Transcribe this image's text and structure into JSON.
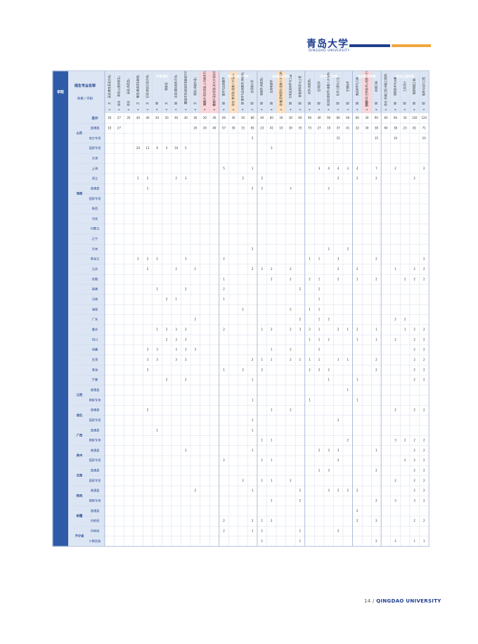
{
  "logo": {
    "cn": "青岛大学",
    "en": "QINGDAO UNIVERSITY"
  },
  "footer": {
    "page": "14 /",
    "university": "QINGDAO UNIVERSITY"
  },
  "colors": {
    "header_blue": "#2f5aa8",
    "light_blue": "#dbe5f3",
    "pink": "#f9d6dc",
    "peach": "#fbe1c4",
    "grid": "#c9d3e6"
  },
  "header": {
    "college": "学院",
    "major": "招生专业名称",
    "category": "科类",
    "years": "学制",
    "total": "总计",
    "regions": [
      {
        "name": "山东",
        "cols": [
          "普通类",
          "地方专项",
          "国家专项"
        ]
      },
      {
        "name": "",
        "cols": [
          "天津"
        ]
      },
      {
        "name": "",
        "cols": [
          "上海"
        ]
      },
      {
        "name": "",
        "cols": [
          "浙江"
        ]
      },
      {
        "name": "海南",
        "cols": [
          "普通类",
          "国家专项"
        ]
      },
      {
        "name": "",
        "cols": [
          "陕西"
        ]
      },
      {
        "name": "",
        "cols": [
          "河北"
        ]
      },
      {
        "name": "",
        "cols": [
          "内蒙古"
        ]
      },
      {
        "name": "",
        "cols": [
          "辽宁"
        ]
      },
      {
        "name": "",
        "cols": [
          "吉林"
        ]
      },
      {
        "name": "",
        "cols": [
          "黑龙江"
        ]
      },
      {
        "name": "",
        "cols": [
          "江苏"
        ]
      },
      {
        "name": "",
        "cols": [
          "安徽"
        ]
      },
      {
        "name": "",
        "cols": [
          "福建"
        ]
      },
      {
        "name": "",
        "cols": [
          "河南"
        ]
      },
      {
        "name": "",
        "cols": [
          "湖南"
        ]
      },
      {
        "name": "",
        "cols": [
          "广东"
        ]
      },
      {
        "name": "",
        "cols": [
          "重庆"
        ]
      },
      {
        "name": "",
        "cols": [
          "四川"
        ]
      },
      {
        "name": "",
        "cols": [
          "西藏"
        ]
      },
      {
        "name": "",
        "cols": [
          "甘肃"
        ]
      },
      {
        "name": "",
        "cols": [
          "青海"
        ]
      },
      {
        "name": "",
        "cols": [
          "宁夏"
        ]
      },
      {
        "name": "江西",
        "cols": [
          "普通类",
          "国家专项"
        ]
      },
      {
        "name": "湖北",
        "cols": [
          "普通类",
          "国家专项"
        ]
      },
      {
        "name": "广西",
        "cols": [
          "普通类",
          "国家专项"
        ]
      },
      {
        "name": "贵州",
        "cols": [
          "普通类",
          "国家专项"
        ]
      },
      {
        "name": "云南",
        "cols": [
          "普通类",
          "国家专项"
        ]
      },
      {
        "name": "陕西",
        "cols": [
          "普通类",
          "国家专项"
        ]
      },
      {
        "name": "新疆",
        "cols": [
          "普通类",
          "内地班"
        ]
      },
      {
        "name": "不分省",
        "cols": [
          "内地班",
          "少数民族"
        ]
      }
    ]
  },
  "totals_row": [
    "",
    "",
    "",
    "7150",
    "4235",
    "200",
    "640",
    "",
    "35",
    "10",
    "115",
    "48",
    "",
    "77",
    "80",
    "30",
    "70",
    "70",
    "110",
    "40",
    "60",
    "105",
    "89",
    "105",
    "77",
    "55",
    "95",
    "8",
    "60",
    "15",
    "15",
    "77",
    "10",
    "33",
    "22",
    "65",
    "12",
    "116",
    "27",
    "99",
    "18",
    "51",
    "14",
    "34",
    "20",
    "20",
    "63"
  ],
  "groups": [
    {
      "college": "外语学院",
      "color": "",
      "rows": [
        {
          "major": "英语(教育英语方向)",
          "cat": "文",
          "yrs": "4",
          "highlight": "",
          "vals": {
            "0": "20",
            "1": "10"
          }
        },
        {
          "major": "英语(公费师范生)",
          "cat": "综合",
          "yrs": "4",
          "highlight": "",
          "vals": {
            "0": "27",
            "1": "27"
          }
        },
        {
          "major": "英语(师范类)",
          "cat": "综合",
          "yrs": "4",
          "highlight": "",
          "vals": {
            "0": "20"
          }
        },
        {
          "major": "俄语(俄语语言翻译)",
          "cat": "文",
          "yrs": "4",
          "highlight": "",
          "vals": {
            "0": "40",
            "3": "20",
            "6": "2",
            "14": "2"
          }
        },
        {
          "major": "日语(商务日语方向)",
          "cat": "文",
          "yrs": "4",
          "highlight": "",
          "vals": {
            "0": "40",
            "3": "11",
            "6": "2",
            "7": "1",
            "14": "2",
            "15": "2",
            "23": "3",
            "24": "3",
            "25": "3",
            "29": "2"
          }
        },
        {
          "major": "",
          "cat": "理",
          "yrs": "4",
          "highlight": "",
          "vals": {
            "0": "20",
            "3": "9",
            "14": "2",
            "17": "2",
            "21": "1",
            "23": "3",
            "24": "3",
            "31": "1"
          }
        },
        {
          "major": "朝鲜语",
          "cat": "文",
          "yrs": "4",
          "highlight": "",
          "vals": {
            "0": "20",
            "3": "5",
            "18": "2",
            "21": "2",
            "22": "2",
            "26": "2"
          }
        },
        {
          "major": "法语(国际商务方向)",
          "cat": "理",
          "yrs": "4",
          "highlight": "",
          "vals": {
            "0": "40",
            "3": "10",
            "6": "2",
            "15": "2",
            "18": "1",
            "21": "3",
            "22": "3",
            "23": "3",
            "24": "3"
          }
        },
        {
          "major": "西班牙语(西班牙语翻译方向)",
          "cat": "文",
          "yrs": "4",
          "highlight": "",
          "vals": {
            "0": "30",
            "3": "5",
            "6": "3",
            "14": "3",
            "17": "2",
            "21": "3",
            "22": "3",
            "23": "3",
            "24": "3",
            "26": "2",
            "33": "3"
          }
        },
        {
          "major": "德语(卓越外语)",
          "cat": "文",
          "yrs": "4",
          "highlight": "",
          "vals": {
            "0": "30",
            "1": "20",
            "15": "1",
            "20": "2",
            "23": "3",
            "37": "2"
          }
        },
        {
          "major": "综合外语实验班(上外翻译方向)",
          "cat": "综合",
          "yrs": "4",
          "highlight": "pink",
          "vals": {
            "0": "20",
            "1": "20"
          }
        },
        {
          "major": "综合外语实验班(青大外语实验班)",
          "cat": "综合",
          "yrs": "4",
          "highlight": "pink",
          "vals": {
            "0": "40",
            "1": "40"
          }
        }
      ]
    },
    {
      "college": "数学与统计学院",
      "color": "",
      "rows": [
        {
          "major": "数学与应用数学",
          "cat": "理",
          "yrs": "4",
          "highlight": "",
          "vals": {
            "0": "60",
            "1": "57",
            "5": "5",
            "14": "2",
            "16": "1",
            "17": "2",
            "18": "1",
            "21": "2",
            "25": "1",
            "34": "2",
            "40": "2",
            "41": "2"
          }
        },
        {
          "major": "数学类(强基人才培养)",
          "cat": "综合",
          "yrs": "4",
          "highlight": "peach",
          "vals": {
            "0": "30",
            "1": "30"
          }
        },
        {
          "major": "数学与应用数学(师范类)",
          "cat": "理",
          "yrs": "4",
          "highlight": "",
          "vals": {
            "0": "30",
            "1": "15",
            "6": "2",
            "19": "1",
            "25": "2",
            "36": "2"
          }
        },
        {
          "major": "应用统计学",
          "cat": "理",
          "yrs": "4",
          "highlight": "",
          "vals": {
            "0": "80",
            "1": "65",
            "2": "5",
            "5": "1",
            "7": "2",
            "13": "2",
            "15": "2",
            "24": "2",
            "26": "1",
            "28": "1",
            "30": "1",
            "31": "1",
            "33": "1",
            "37": "1",
            "40": "2",
            "41": "1",
            "45": "5"
          }
        }
      ]
    },
    {
      "college": "物理科学学院",
      "color": "",
      "rows": [
        {
          "major": "物理学(师范类)",
          "cat": "理",
          "yrs": "4",
          "highlight": "",
          "vals": {
            "0": "40",
            "1": "23",
            "6": "2",
            "7": "2",
            "15": "2",
            "21": "1",
            "24": "1",
            "25": "2",
            "32": "1",
            "34": "1",
            "36": "1",
            "40": "1",
            "41": "1",
            "42": "1",
            "45": "5"
          }
        },
        {
          "major": "应用物理学",
          "cat": "理",
          "yrs": "4",
          "highlight": "",
          "vals": {
            "0": "60",
            "1": "41",
            "3": "3",
            "15": "2",
            "16": "2",
            "21": "2",
            "23": "1",
            "24": "1",
            "29": "1",
            "32": "1",
            "34": "1",
            "36": "1",
            "38": "1",
            "40": "2",
            "43": "2"
          }
        },
        {
          "major": "应用物理学(强基人才培养)",
          "cat": "综合",
          "yrs": "4",
          "highlight": "peach",
          "vals": {
            "0": "30",
            "1": "10"
          }
        },
        {
          "major": "光电信息科学与工程",
          "cat": "理",
          "yrs": "4",
          "highlight": "",
          "vals": {
            "0": "30",
            "1": "30",
            "7": "3",
            "15": "2",
            "16": "2",
            "19": "2",
            "21": "2",
            "23": "2",
            "24": "2",
            "29": "2",
            "36": "2"
          }
        },
        {
          "major": "新能源科学与工程",
          "cat": "理",
          "yrs": "4",
          "highlight": "",
          "vals": {
            "0": "60",
            "1": "35",
            "17": "2",
            "20": "2",
            "21": "3",
            "24": "1",
            "37": "2",
            "38": "2",
            "41": "1",
            "42": "1"
          }
        }
      ]
    },
    {
      "college": "化学化工学院",
      "color": "",
      "rows": [
        {
          "major": "化学(师范类)",
          "cat": "理",
          "yrs": "4",
          "highlight": "",
          "vals": {
            "0": "90",
            "1": "73",
            "14": "1",
            "16": "2",
            "19": "1",
            "21": "2",
            "22": "1",
            "24": "1",
            "25": "2",
            "28": "1",
            "45": "3"
          }
        },
        {
          "major": "应用化学",
          "cat": "理",
          "yrs": "4",
          "highlight": "",
          "vals": {
            "0": "40",
            "1": "27",
            "5": "3",
            "14": "1",
            "16": "1",
            "17": "2",
            "18": "1",
            "19": "1",
            "20": "1",
            "21": "1",
            "22": "1",
            "23": "2",
            "24": "1",
            "25": "2",
            "33": "2",
            "35": "1",
            "43": "2"
          }
        },
        {
          "major": "应用化学(强基人才培养)",
          "cat": "综合",
          "yrs": "4",
          "highlight": "",
          "vals": {
            "0": "90",
            "1": "10",
            "5": "4",
            "7": "2",
            "13": "2",
            "20": "2",
            "22": "2",
            "25": "2",
            "26": "1",
            "33": "3",
            "35": "3",
            "37": "3"
          }
        },
        {
          "major": "化学工程与工艺",
          "cat": "理",
          "yrs": "4",
          "highlight": "",
          "vals": {
            "0": "80",
            "1": "37",
            "2": "15",
            "5": "4",
            "6": "2",
            "14": "3",
            "15": "2",
            "16": "2",
            "21": "2",
            "24": "1",
            "30": "2",
            "33": "3",
            "34": "2",
            "37": "2",
            "41": "2",
            "45": "3"
          }
        },
        {
          "major": "生物技术",
          "cat": "理",
          "yrs": "4",
          "highlight": "",
          "vals": {
            "0": "60",
            "1": "41",
            "5": "3",
            "13": "2",
            "21": "1",
            "24": "1",
            "27": "1",
            "32": "2",
            "37": "2",
            "45": "2"
          }
        }
      ]
    },
    {
      "college": "生命科学学院",
      "color": "",
      "rows": [
        {
          "major": "食品科学与工程",
          "cat": "理",
          "yrs": "4",
          "highlight": "",
          "vals": {
            "0": "60",
            "1": "32",
            "5": "4",
            "6": "2",
            "15": "2",
            "16": "1",
            "21": "2",
            "22": "1",
            "26": "1",
            "28": "1",
            "37": "2",
            "39": "2",
            "40": "2",
            "43": "3",
            "45": "2"
          }
        },
        {
          "major": "生物科学(生物技术)(强基人才培养)",
          "cat": "综合",
          "yrs": "4",
          "highlight": "pink",
          "vals": {
            "0": "30",
            "1": "30"
          }
        },
        {
          "major": "机械工程",
          "cat": "理",
          "yrs": "4",
          "highlight": "",
          "vals": {
            "0": "90",
            "1": "38",
            "2": "15",
            "5": "7",
            "6": "2",
            "14": "2",
            "16": "2",
            "21": "1",
            "22": "1",
            "24": "2",
            "25": "2",
            "33": "1",
            "35": "2",
            "38": "2",
            "40": "2",
            "42": "2"
          }
        }
      ]
    },
    {
      "college": "机电工程学院",
      "color": "",
      "rows": [
        {
          "major": "机械工程(卓越工程师)",
          "cat": "综合",
          "yrs": "4",
          "highlight": "",
          "vals": {
            "0": "60",
            "1": "60"
          }
        },
        {
          "major": "测控技术与仪器",
          "cat": "理",
          "yrs": "4",
          "highlight": "",
          "vals": {
            "0": "60",
            "1": "38",
            "2": "10",
            "5": "2",
            "15": "1",
            "20": "2",
            "22": "2",
            "29": "2",
            "32": "3",
            "36": "2",
            "38": "3",
            "42": "2"
          }
        },
        {
          "major": "工业设计",
          "cat": "理",
          "yrs": "4",
          "highlight": "",
          "vals": {
            "0": "30",
            "1": "23",
            "16": "2",
            "20": "2",
            "21": "1",
            "32": "2",
            "34": "2"
          }
        },
        {
          "major": "智能制造工程",
          "cat": "理",
          "yrs": "4",
          "highlight": "",
          "vals": {
            "0": "120",
            "1": "81",
            "6": "2",
            "15": "2",
            "16": "2",
            "21": "2",
            "22": "2",
            "23": "2",
            "24": "2",
            "25": "2",
            "26": "2",
            "29": "2",
            "32": "2",
            "33": "2",
            "34": "2",
            "35": "2",
            "36": "2",
            "37": "2",
            "38": "3",
            "40": "2",
            "42": "1",
            "45": "1"
          }
        },
        {
          "major": "能源与动力工程",
          "cat": "理",
          "yrs": "4",
          "highlight": "",
          "vals": {
            "0": "120",
            "1": "71",
            "2": "10",
            "5": "2",
            "14": "2",
            "15": "2",
            "16": "2",
            "21": "2",
            "22": "2",
            "23": "2",
            "24": "2",
            "25": "2",
            "26": "2",
            "29": "2",
            "32": "2",
            "33": "2",
            "34": "2",
            "35": "2",
            "36": "2",
            "37": "2",
            "38": "2",
            "40": "2",
            "42": "1",
            "45": "4"
          }
        }
      ]
    }
  ]
}
